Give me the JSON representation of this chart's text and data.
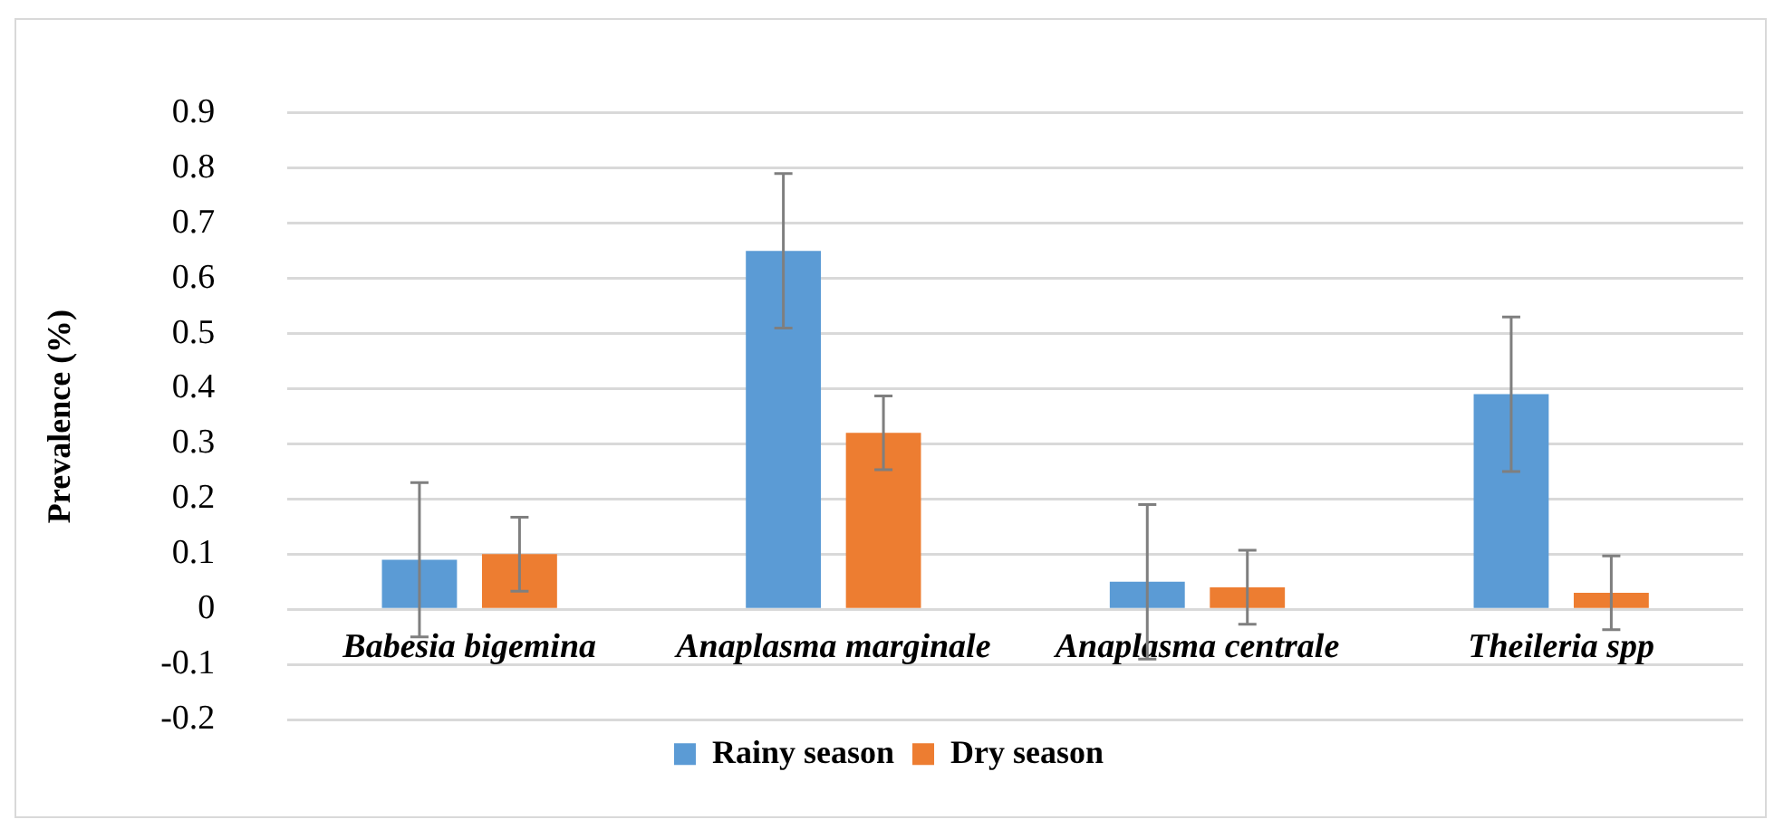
{
  "chart_data": {
    "type": "bar",
    "ylabel": "Prevalence (%)",
    "categories": [
      "Babesia bigemina",
      "Anaplasma marginale",
      "Anaplasma centrale",
      "Theileria spp"
    ],
    "series": [
      {
        "name": "Rainy season",
        "color": "#5b9bd5",
        "values": [
          0.09,
          0.65,
          0.05,
          0.39
        ],
        "errors": [
          0.14,
          0.14,
          0.14,
          0.14
        ]
      },
      {
        "name": "Dry season",
        "color": "#ed7d31",
        "values": [
          0.1,
          0.32,
          0.04,
          0.03
        ],
        "errors": [
          0.067,
          0.067,
          0.067,
          0.067
        ]
      }
    ],
    "ylim": [
      -0.2,
      0.9
    ],
    "yticks": [
      -0.2,
      -0.1,
      0,
      0.1,
      0.2,
      0.3,
      0.4,
      0.5,
      0.6,
      0.7,
      0.8,
      0.9
    ],
    "grid": "y",
    "legend": "bottom"
  }
}
